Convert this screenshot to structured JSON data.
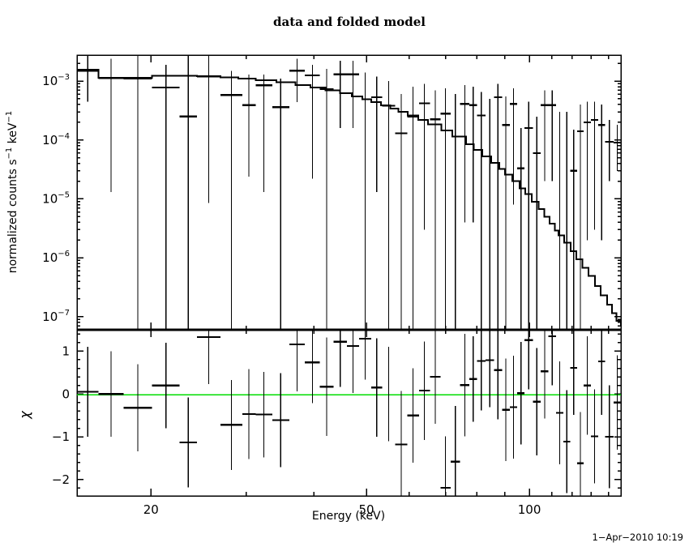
{
  "title": "data and folded model",
  "date_stamp": "1−Apr−2010 10:19",
  "colors": {
    "foreground": "#000000",
    "background": "#ffffff",
    "zero_line_green": "#00dd00"
  },
  "chart_data": [
    {
      "type": "line",
      "panel": "spectrum",
      "title": "data and folded model",
      "xlabel": "",
      "ylabel_parts": [
        [
          "normalized counts s",
          0
        ],
        [
          "−1",
          1
        ],
        [
          " keV",
          0
        ],
        [
          "−1",
          1
        ]
      ],
      "xscale": "log",
      "yscale": "log",
      "xlim": [
        14.6,
        147.6
      ],
      "ylim": [
        6e-08,
        0.00276
      ],
      "grid": false,
      "legend": "none",
      "x_major_ticks": [
        20,
        50,
        100
      ],
      "x_major_tick_labels": [
        "20",
        "50",
        "100"
      ],
      "x_minor_ticks": [
        30,
        40,
        60,
        70,
        80,
        90,
        110,
        120,
        130,
        140
      ],
      "y_major_ticks": [
        0.001,
        0.0001,
        1e-05,
        1e-06,
        1e-07
      ],
      "y_major_tick_labels": [
        {
          "base": "10",
          "exp": "−3"
        },
        {
          "base": "10",
          "exp": "−4"
        },
        {
          "base": "10",
          "exp": "−5"
        },
        {
          "base": "10",
          "exp": "−6"
        },
        {
          "base": "10",
          "exp": "−7"
        }
      ],
      "y_minor_mantissas": [
        2,
        3,
        4,
        5,
        6,
        7,
        8,
        9
      ],
      "model_steps_comment": "folded model histogram, pairs of [energy_keV, counts]",
      "model_steps": [
        [
          14.6,
          0.00155
        ],
        [
          16.0,
          0.00113
        ],
        [
          20.1,
          0.00124
        ],
        [
          24.3,
          0.00122
        ],
        [
          26.9,
          0.00116
        ],
        [
          29.0,
          0.0011
        ],
        [
          31.2,
          0.00103
        ],
        [
          34.1,
          0.00095
        ],
        [
          37.0,
          0.00086
        ],
        [
          39.4,
          0.00078
        ],
        [
          42.0,
          0.0007
        ],
        [
          44.7,
          0.00062
        ],
        [
          47.0,
          0.00055
        ],
        [
          49.1,
          0.00049
        ],
        [
          51.0,
          0.00044
        ],
        [
          53.2,
          0.00039
        ],
        [
          55.3,
          0.00034
        ],
        [
          57.3,
          0.0003
        ],
        [
          59.6,
          0.00026
        ],
        [
          62.3,
          0.00022
        ],
        [
          65.0,
          0.000185
        ],
        [
          68.8,
          0.000145
        ],
        [
          72.0,
          0.000115
        ],
        [
          76.4,
          8.5e-05
        ],
        [
          79.0,
          6.8e-05
        ],
        [
          81.9,
          5.3e-05
        ],
        [
          85.0,
          4.1e-05
        ],
        [
          88.0,
          3.2e-05
        ],
        [
          90.1,
          2.6e-05
        ],
        [
          93.0,
          2e-05
        ],
        [
          96.0,
          1.5e-05
        ],
        [
          98.2,
          1.2e-05
        ],
        [
          101,
          9e-06
        ],
        [
          104,
          6.7e-06
        ],
        [
          106.5,
          5e-06
        ],
        [
          109,
          3.8e-06
        ],
        [
          111.5,
          2.9e-06
        ],
        [
          113.2,
          2.4e-06
        ],
        [
          116,
          1.8e-06
        ],
        [
          119.1,
          1.3e-06
        ],
        [
          122,
          9.5e-07
        ],
        [
          125.4,
          6.8e-07
        ],
        [
          128.5,
          4.9e-07
        ],
        [
          132.2,
          3.3e-07
        ],
        [
          135.5,
          2.3e-07
        ],
        [
          139.1,
          1.6e-07
        ],
        [
          142,
          1.15e-07
        ],
        [
          144.8,
          8.5e-08
        ],
        [
          147.6,
          7e-08
        ]
      ],
      "data_columns": [
        "e_min_keV",
        "e_max_keV",
        "value",
        "err_low",
        "err_high"
      ],
      "data_points": [
        [
          14.6,
          16.0,
          0.0015,
          0.00045,
          0.005
        ],
        [
          16.0,
          17.8,
          0.00113,
          1.3e-05,
          0.0024
        ],
        [
          17.8,
          20.1,
          0.0011,
          1e-09,
          0.005
        ],
        [
          20.1,
          22.6,
          0.00078,
          1e-09,
          0.0019
        ],
        [
          22.6,
          24.3,
          0.00025,
          1e-09,
          0.005
        ],
        [
          24.3,
          26.9,
          0.0012,
          8.5e-06,
          0.0028
        ],
        [
          26.9,
          29.5,
          0.00058,
          1e-09,
          0.0015
        ],
        [
          29.5,
          31.2,
          0.00039,
          2.4e-05,
          0.0013
        ],
        [
          31.2,
          33.5,
          0.00085,
          1.3e-05,
          0.0013
        ],
        [
          33.5,
          36.0,
          0.00036,
          1e-09,
          0.0011
        ],
        [
          36.0,
          38.5,
          0.0015,
          0.00044,
          0.0024
        ],
        [
          38.5,
          41.0,
          0.00125,
          2.2e-05,
          0.0019
        ],
        [
          41.0,
          43.5,
          0.00073,
          1e-09,
          0.0016
        ],
        [
          43.5,
          46.0,
          0.0013,
          0.00016,
          0.0022
        ],
        [
          46.0,
          48.5,
          0.0013,
          0.00016,
          0.0022
        ],
        [
          48.5,
          51.0,
          null,
          1e-09,
          0.0014
        ],
        [
          51.0,
          53.5,
          0.00053,
          1.3e-05,
          0.0012
        ],
        [
          53.5,
          56.5,
          0.00038,
          1e-09,
          0.001
        ],
        [
          56.5,
          59.5,
          0.00013,
          1e-09,
          0.0006
        ],
        [
          59.5,
          62.5,
          0.00025,
          1e-09,
          0.0008
        ],
        [
          62.5,
          65.5,
          0.00042,
          3e-06,
          0.0009
        ],
        [
          65.5,
          68.5,
          0.000225,
          1e-09,
          0.0007
        ],
        [
          68.5,
          71.5,
          0.00028,
          1e-09,
          0.00075
        ],
        [
          71.5,
          74.5,
          null,
          1e-09,
          0.0006
        ],
        [
          74.5,
          77.5,
          0.00041,
          4e-06,
          0.00085
        ],
        [
          77.5,
          80.0,
          0.00039,
          4e-06,
          0.0008
        ],
        [
          80.0,
          83.0,
          0.00026,
          1e-09,
          0.00065
        ],
        [
          83.0,
          86.0,
          null,
          1e-09,
          0.0005
        ],
        [
          86.0,
          89.0,
          0.00053,
          1e-09,
          0.0009
        ],
        [
          89.0,
          92.0,
          0.00018,
          1e-09,
          0.00055
        ],
        [
          92.0,
          95.0,
          0.00041,
          8e-06,
          0.00075
        ],
        [
          95.0,
          98.0,
          3.3e-05,
          1e-09,
          0.00016
        ],
        [
          98.0,
          101.5,
          0.00016,
          1e-09,
          0.00045
        ],
        [
          101.5,
          105.0,
          6e-05,
          1e-09,
          0.00025
        ],
        [
          105.0,
          108.5,
          0.00039,
          2e-05,
          0.0007
        ],
        [
          108.5,
          112.0,
          0.00039,
          2e-05,
          0.0007
        ],
        [
          112.0,
          115.5,
          null,
          1e-09,
          0.0003
        ],
        [
          115.5,
          119.0,
          null,
          1e-09,
          0.0003
        ],
        [
          119.0,
          122.5,
          3e-05,
          1e-09,
          0.00015
        ],
        [
          122.5,
          126.0,
          0.00014,
          1e-09,
          0.0004
        ],
        [
          126.0,
          130.0,
          0.0002,
          2e-06,
          0.00045
        ],
        [
          130.0,
          134.0,
          0.00022,
          3e-06,
          0.00045
        ],
        [
          134.0,
          138.0,
          0.00018,
          2e-06,
          0.0004
        ],
        [
          138.0,
          143.0,
          9.3e-05,
          2e-05,
          0.00022
        ],
        [
          143.0,
          147.6,
          9e-05,
          3e-05,
          0.00018
        ]
      ]
    },
    {
      "type": "scatter",
      "panel": "residuals",
      "ylabel": "χ",
      "xlabel": "Energy (keV)",
      "xscale": "log",
      "yscale": "linear",
      "xlim": [
        14.6,
        147.6
      ],
      "ylim": [
        -2.38,
        1.5
      ],
      "zero_line_value": 0,
      "y_major_ticks": [
        1,
        0,
        -1,
        -2
      ],
      "y_major_tick_labels": [
        "1",
        "0",
        "−1",
        "−2"
      ],
      "y_minor_step": 0.2,
      "data_columns": [
        "e_min_keV",
        "e_max_keV",
        "chi",
        "sigma"
      ],
      "data_points": [
        [
          14.6,
          16.0,
          0.05,
          1.05
        ],
        [
          16.0,
          17.8,
          0.0,
          1.0
        ],
        [
          17.8,
          20.1,
          -0.32,
          1.02
        ],
        [
          20.1,
          22.6,
          0.2,
          1.0
        ],
        [
          22.6,
          24.3,
          -1.13,
          1.05
        ],
        [
          24.3,
          26.9,
          1.33,
          1.1
        ],
        [
          26.9,
          29.5,
          -0.72,
          1.05
        ],
        [
          29.5,
          31.2,
          -0.47,
          1.05
        ],
        [
          31.2,
          33.5,
          -0.48,
          1.0
        ],
        [
          33.5,
          36.0,
          -0.61,
          1.1
        ],
        [
          36.0,
          38.5,
          1.16,
          1.1
        ],
        [
          38.5,
          41.0,
          0.74,
          0.95
        ],
        [
          41.0,
          43.5,
          0.17,
          1.15
        ],
        [
          43.5,
          46.0,
          1.22,
          1.05
        ],
        [
          46.0,
          48.5,
          1.12,
          1.1
        ],
        [
          48.5,
          51.0,
          1.29,
          0.95
        ],
        [
          51.0,
          53.5,
          0.15,
          1.15
        ],
        [
          53.5,
          56.5,
          null,
          1.1
        ],
        [
          56.5,
          59.5,
          -1.18,
          1.25
        ],
        [
          59.5,
          62.5,
          -0.5,
          1.1
        ],
        [
          62.5,
          65.5,
          0.08,
          1.15
        ],
        [
          65.5,
          68.5,
          0.4,
          1.1
        ],
        [
          68.5,
          71.5,
          -2.19,
          1.2
        ],
        [
          71.5,
          74.5,
          -1.58,
          1.3
        ],
        [
          74.5,
          77.5,
          0.21,
          1.2
        ],
        [
          77.5,
          80.0,
          0.35,
          1.0
        ],
        [
          80.0,
          83.0,
          0.77,
          1.15
        ],
        [
          83.0,
          86.0,
          0.79,
          1.1
        ],
        [
          86.0,
          89.0,
          0.56,
          1.15
        ],
        [
          89.0,
          92.0,
          -0.37,
          1.2
        ],
        [
          92.0,
          95.0,
          -0.31,
          1.2
        ],
        [
          95.0,
          98.0,
          0.02,
          1.2
        ],
        [
          98.0,
          101.5,
          1.26,
          1.15
        ],
        [
          101.5,
          105.0,
          -0.18,
          1.25
        ],
        [
          105.0,
          108.5,
          0.53,
          1.1
        ],
        [
          108.5,
          112.0,
          1.35,
          1.15
        ],
        [
          112.0,
          115.5,
          -0.44,
          1.2
        ],
        [
          115.5,
          119.0,
          -1.11,
          1.2
        ],
        [
          119.0,
          122.5,
          0.61,
          1.1
        ],
        [
          122.5,
          126.0,
          -1.62,
          1.2
        ],
        [
          126.0,
          130.0,
          0.2,
          1.15
        ],
        [
          130.0,
          134.0,
          -0.99,
          1.1
        ],
        [
          134.0,
          138.0,
          0.76,
          1.25
        ],
        [
          138.0,
          143.0,
          -1.0,
          1.2
        ],
        [
          143.0,
          147.6,
          -0.2,
          1.1
        ]
      ]
    }
  ]
}
